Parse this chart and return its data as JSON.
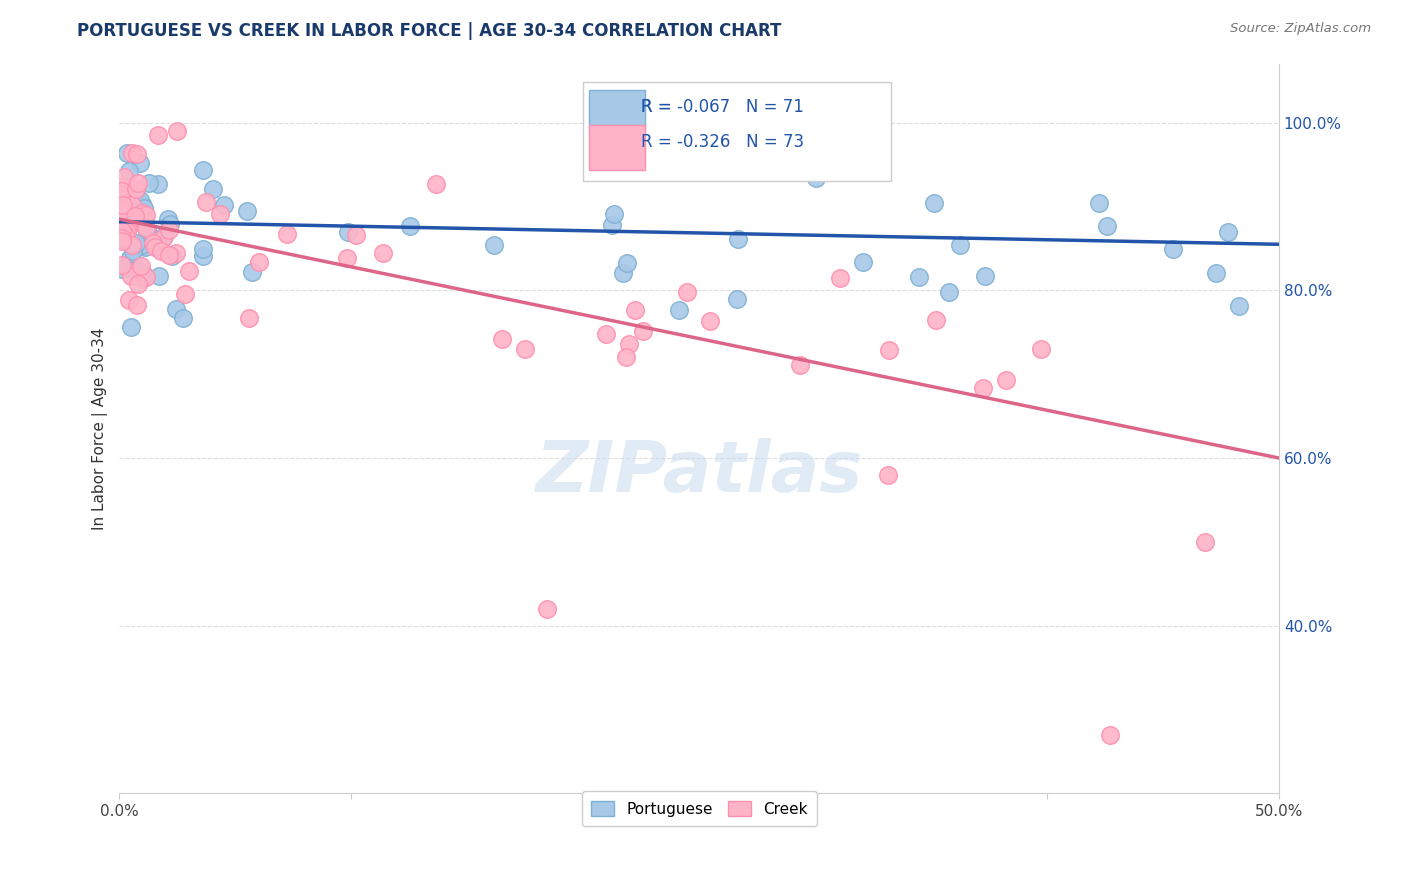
{
  "title": "PORTUGUESE VS CREEK IN LABOR FORCE | AGE 30-34 CORRELATION CHART",
  "source_text": "Source: ZipAtlas.com",
  "ylabel": "In Labor Force | Age 30-34",
  "xlim": [
    0.0,
    0.5
  ],
  "ylim": [
    0.2,
    1.07
  ],
  "xtick_vals": [
    0.0,
    0.1,
    0.2,
    0.3,
    0.4,
    0.5
  ],
  "xtick_show": [
    0.0,
    0.5
  ],
  "ytick_vals_right": [
    0.4,
    0.6,
    0.8,
    1.0
  ],
  "blue_color": "#A8C8E8",
  "blue_edge_color": "#7EB0D5",
  "pink_color": "#FFB3C6",
  "pink_edge_color": "#FF8FAF",
  "blue_line_color": "#2255AA",
  "pink_line_color": "#DD6688",
  "R_blue": -0.067,
  "N_blue": 71,
  "R_pink": -0.326,
  "N_pink": 73,
  "watermark_text": "ZIPatlas",
  "background_color": "#FFFFFF",
  "grid_color": "#DDDDDD",
  "title_color": "#1A3A6B",
  "right_tick_color": "#2255AA",
  "legend_R_color": "#CC2244",
  "legend_N_color": "#2255AA"
}
